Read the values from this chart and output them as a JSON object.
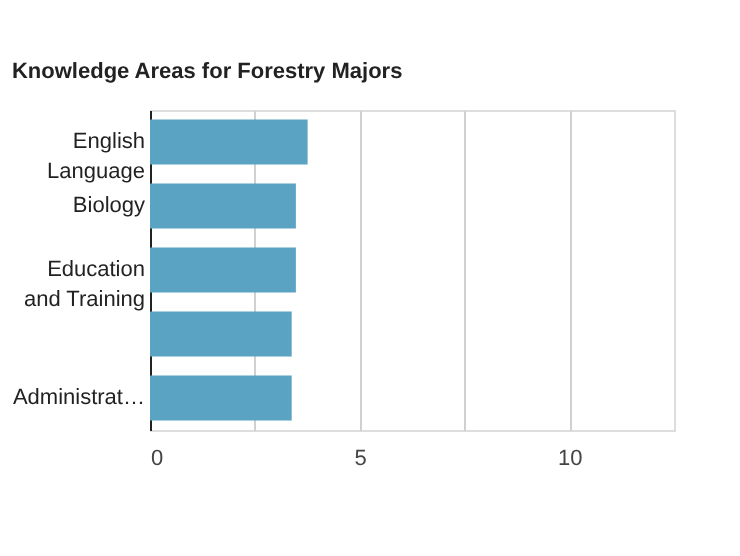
{
  "chart_data": {
    "type": "bar",
    "orientation": "horizontal",
    "title": "Knowledge Areas for Forestry Majors",
    "categories": [
      "English\nLanguage",
      "Biology",
      "Education\nand Training",
      null,
      "Administrat…"
    ],
    "values": [
      3.76,
      3.48,
      3.48,
      3.38,
      3.38
    ],
    "color": "#5ba3c3",
    "xlim": [
      0,
      12.5
    ],
    "xticks": [
      0,
      {
        "value": 2.5,
        "label": null
      },
      5,
      {
        "value": 7.5,
        "label": null
      },
      10
    ],
    "grid": "x"
  }
}
